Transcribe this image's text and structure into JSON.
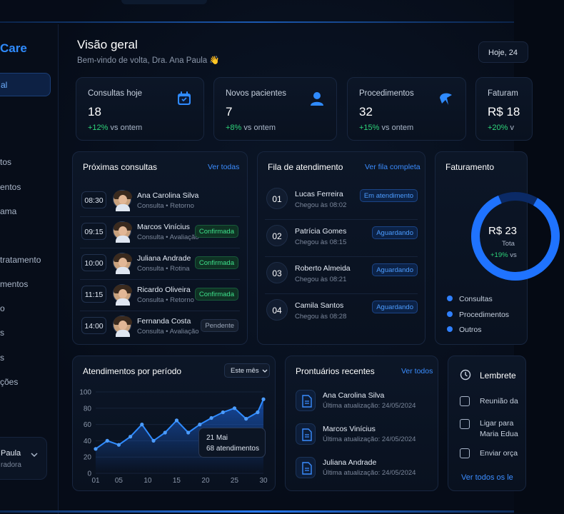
{
  "brand": "Care",
  "sidebar": {
    "active": "al",
    "items": [
      "tos",
      "entos",
      "ama",
      "tratamento",
      "mentos",
      "o",
      "s",
      "s",
      "ções"
    ],
    "user": {
      "name": "Paula",
      "role": "radora"
    }
  },
  "header": {
    "title": "Visão geral",
    "subtitle": "Bem-vindo de volta, Dra. Ana Paula 👋",
    "date_button": "Hoje, 24"
  },
  "stats": [
    {
      "label": "Consultas hoje",
      "value": "18",
      "delta": "+12%",
      "delta_text": "vs ontem",
      "icon": "calendar-icon"
    },
    {
      "label": "Novos pacientes",
      "value": "7",
      "delta": "+8%",
      "delta_text": "vs ontem",
      "icon": "user-icon"
    },
    {
      "label": "Procedimentos",
      "value": "32",
      "delta": "+15%",
      "delta_text": "vs ontem",
      "icon": "tooth-icon"
    },
    {
      "label": "Faturam",
      "value": "R$ 18",
      "delta": "+20%",
      "delta_text": "v"
    }
  ],
  "appointments": {
    "title": "Próximas consultas",
    "link": "Ver todas",
    "rows": [
      {
        "time": "08:30",
        "name": "Ana Carolina Silva",
        "info": "Consulta • Retorno",
        "status": ""
      },
      {
        "time": "09:15",
        "name": "Marcos Vinícius",
        "info": "Consulta • Avaliação",
        "status": "Confirmada"
      },
      {
        "time": "10:00",
        "name": "Juliana Andrade",
        "info": "Consulta • Rotina",
        "status": "Confirmada"
      },
      {
        "time": "11:15",
        "name": "Ricardo Oliveira",
        "info": "Consulta • Retorno",
        "status": "Confirmada"
      },
      {
        "time": "14:00",
        "name": "Fernanda Costa",
        "info": "Consulta • Avaliação",
        "status": "Pendente"
      }
    ]
  },
  "queue": {
    "title": "Fila de atendimento",
    "link": "Ver fila completa",
    "rows": [
      {
        "num": "01",
        "name": "Lucas Ferreira",
        "info": "Chegou às 08:02",
        "status": "Em atendimento"
      },
      {
        "num": "02",
        "name": "Patrícia Gomes",
        "info": "Chegou às 08:15",
        "status": "Aguardando"
      },
      {
        "num": "03",
        "name": "Roberto Almeida",
        "info": "Chegou às 08:21",
        "status": "Aguardando"
      },
      {
        "num": "04",
        "name": "Camila Santos",
        "info": "Chegou às 08:28",
        "status": "Aguardando"
      }
    ]
  },
  "billing": {
    "title": "Faturamento",
    "center_value": "R$ 23",
    "center_label": "Tota",
    "center_delta": "+19%",
    "center_delta_text": "vs",
    "legend": [
      {
        "name": "Consultas",
        "color": "#2f80ff"
      },
      {
        "name": "Procedimentos",
        "color": "#2f80ff"
      },
      {
        "name": "Outros",
        "color": "#2f80ff"
      }
    ]
  },
  "chart_data": {
    "type": "line",
    "title": "Atendimentos por período",
    "period_select": "Este mês",
    "x": [
      1,
      3,
      5,
      7,
      9,
      11,
      13,
      15,
      17,
      19,
      21,
      23,
      25,
      27,
      29,
      30
    ],
    "values": [
      30,
      40,
      35,
      45,
      60,
      40,
      50,
      65,
      50,
      60,
      68,
      75,
      80,
      67,
      75,
      91
    ],
    "x_ticks": [
      "01",
      "05",
      "10",
      "15",
      "20",
      "25",
      "30"
    ],
    "y_ticks": [
      "0",
      "20",
      "40",
      "60",
      "80",
      "100"
    ],
    "ylim": [
      0,
      100
    ],
    "tooltip": {
      "date": "21 Mai",
      "text": "68 atendimentos"
    }
  },
  "records": {
    "title": "Prontuários recentes",
    "link": "Ver todos",
    "rows": [
      {
        "name": "Ana Carolina Silva",
        "info": "Última atualização: 24/05/2024"
      },
      {
        "name": "Marcos Vinícius",
        "info": "Última atualização: 24/05/2024"
      },
      {
        "name": "Juliana Andrade",
        "info": "Última atualização: 24/05/2024"
      }
    ]
  },
  "reminders": {
    "title": "Lembrete",
    "items": [
      "Reunião da",
      "Ligar para",
      "Maria Edua",
      "Enviar orça"
    ],
    "link": "Ver todos os le"
  }
}
